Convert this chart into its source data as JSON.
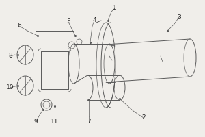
{
  "bg_color": "#f0eeea",
  "line_color": "#5a5a5a",
  "lw": 0.7,
  "tlw": 0.5,
  "font_size": 6.5
}
